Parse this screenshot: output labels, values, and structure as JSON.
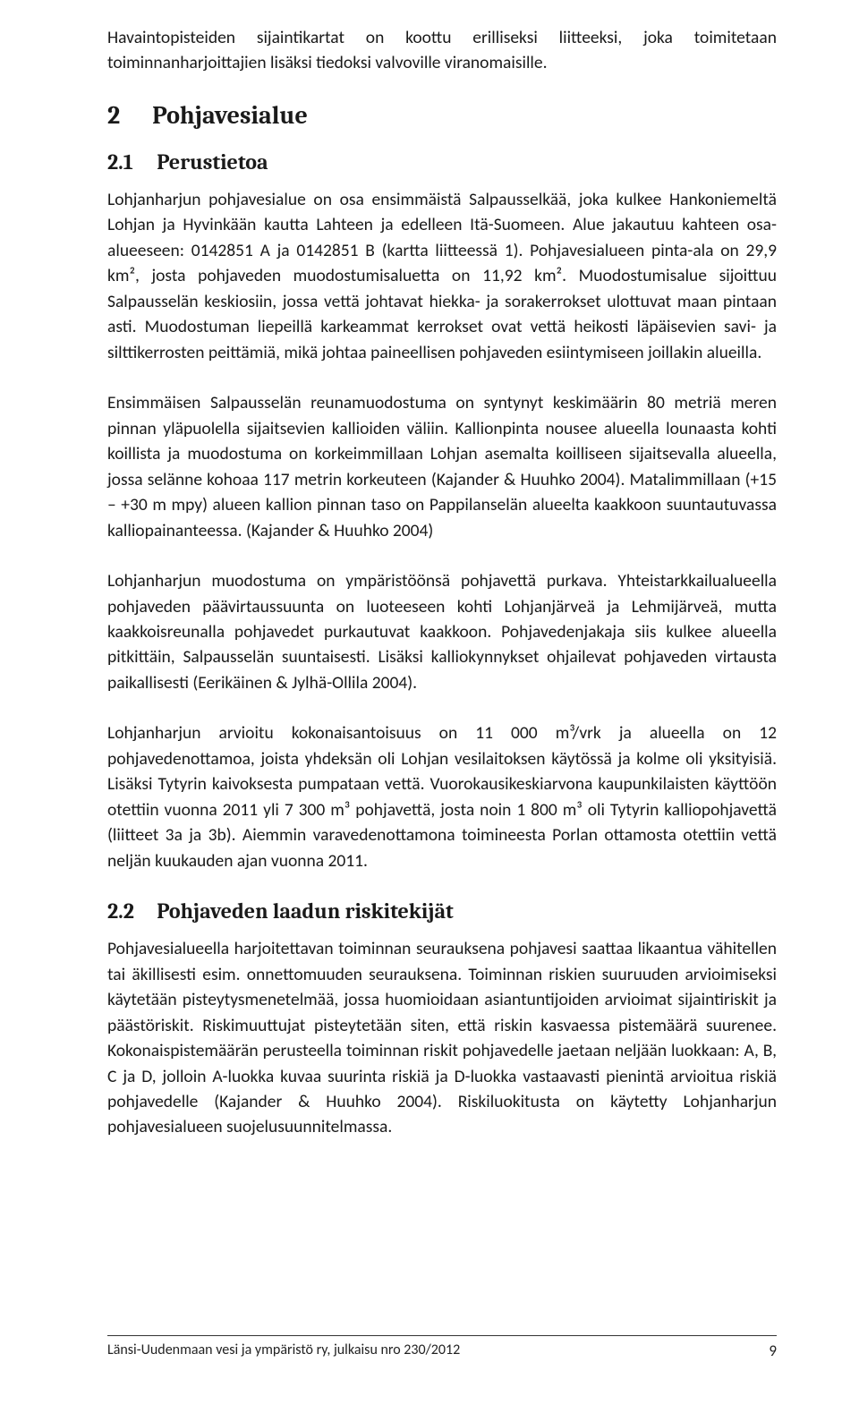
{
  "intro_para": "Havaintopisteiden sijaintikartat on koottu erilliseksi liitteeksi, joka toimitetaan toiminnanharjoittajien lisäksi tiedoksi valvoville viranomaisille.",
  "section2": {
    "num": "2",
    "title": "Pohjavesialue"
  },
  "section2_1": {
    "num": "2.1",
    "title": "Perustietoa"
  },
  "p_2_1_a": "Lohjanharjun pohjavesialue on osa ensimmäistä Salpausselkää, joka kulkee Hankoniemeltä Lohjan ja Hyvinkään kautta Lahteen ja edelleen Itä-Suomeen. Alue jakautuu kahteen osa-alueeseen: 0142851 A ja 0142851 B (kartta liitteessä 1). Pohjavesialueen pinta-ala on 29,9 km², josta pohjaveden muodostumisaluetta on 11,92 km². Muodostumisalue sijoittuu Salpausselän keskiosiin, jossa vettä johtavat hiekka- ja sorakerrokset ulottuvat maan pintaan asti. Muodostuman liepeillä karkeammat kerrokset ovat vettä heikosti läpäisevien savi- ja silttikerrosten peittämiä, mikä johtaa paineellisen pohjaveden esiintymiseen joillakin alueilla.",
  "p_2_1_b": "Ensimmäisen Salpausselän reunamuodostuma on syntynyt keskimäärin 80 metriä meren pinnan yläpuolella sijaitsevien kallioiden väliin. Kallionpinta nousee alueella lounaasta kohti koillista ja muodostuma on korkeimmillaan Lohjan asemalta koilliseen sijaitsevalla alueella, jossa selänne kohoaa 117 metrin korkeuteen (Kajander & Huuhko 2004). Matalimmillaan (+15 – +30 m mpy) alueen kallion pinnan taso on Pappilanselän alueelta kaakkoon suuntautuvassa kalliopainanteessa. (Kajander & Huuhko 2004)",
  "p_2_1_c": "Lohjanharjun muodostuma on ympäristöönsä pohjavettä purkava. Yhteistarkkailualueella pohjaveden päävirtaussuunta on luoteeseen kohti Lohjanjärveä ja Lehmijärveä, mutta kaakkoisreunalla pohjavedet purkautuvat kaakkoon. Pohjavedenjakaja siis kulkee alueella pitkittäin, Salpausselän suuntaisesti. Lisäksi kalliokynnykset ohjailevat pohjaveden virtausta paikallisesti (Eerikäinen & Jylhä-Ollila 2004).",
  "p_2_1_d": "Lohjanharjun arvioitu kokonaisantoisuus on 11 000 m³/vrk ja alueella on 12 pohjavedenottamoa, joista yhdeksän oli Lohjan vesilaitoksen käytössä ja kolme oli yksityisiä. Lisäksi Tytyrin kaivoksesta pumpataan vettä. Vuorokausikeskiarvona kaupunkilaisten käyttöön otettiin vuonna 2011 yli 7 300 m³ pohjavettä, josta noin 1 800 m³ oli Tytyrin kalliopohjavettä (liitteet 3a ja 3b). Aiemmin varavedenottamona toimineesta Porlan ottamosta otettiin vettä neljän kuukauden ajan vuonna 2011.",
  "section2_2": {
    "num": "2.2",
    "title": "Pohjaveden laadun riskitekijät"
  },
  "p_2_2_a": "Pohjavesialueella harjoitettavan toiminnan seurauksena pohjavesi saattaa likaantua vähitellen tai äkillisesti esim. onnettomuuden seurauksena. Toiminnan riskien suuruuden arvioimiseksi käytetään pisteytysmenetelmää, jossa huomioidaan asiantuntijoiden arvioimat sijaintiriskit ja päästöriskit. Riskimuuttujat pisteytetään siten, että riskin kasvaessa pistemäärä suurenee. Kokonaispistemäärän perusteella toiminnan riskit pohjavedelle jaetaan neljään luokkaan: A, B, C ja D, jolloin A-luokka kuvaa suurinta riskiä ja D-luokka vastaavasti pienintä arvioitua riskiä pohjavedelle (Kajander & Huuhko 2004). Riskiluokitusta on käytetty Lohjanharjun pohjavesialueen suojelusuunnitelmassa.",
  "footer": {
    "text": "Länsi-Uudenmaan vesi ja ympäristö ry, julkaisu nro 230/2012",
    "page": "9"
  }
}
